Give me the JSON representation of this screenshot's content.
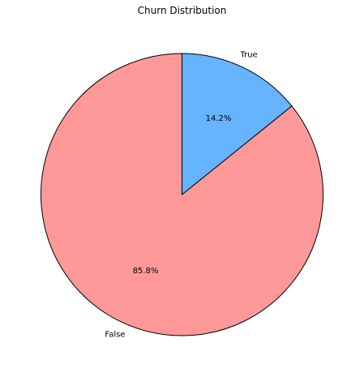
{
  "chart_data": {
    "type": "pie",
    "title": "Churn Distribution",
    "start_angle_deg": 90,
    "direction": "counterclockwise",
    "slices": [
      {
        "label": "False",
        "value": 85.8,
        "pct_label": "85.8%",
        "color": "#ff9999"
      },
      {
        "label": "True",
        "value": 14.2,
        "pct_label": "14.2%",
        "color": "#66b3ff"
      }
    ],
    "edge_color": "#000000"
  }
}
